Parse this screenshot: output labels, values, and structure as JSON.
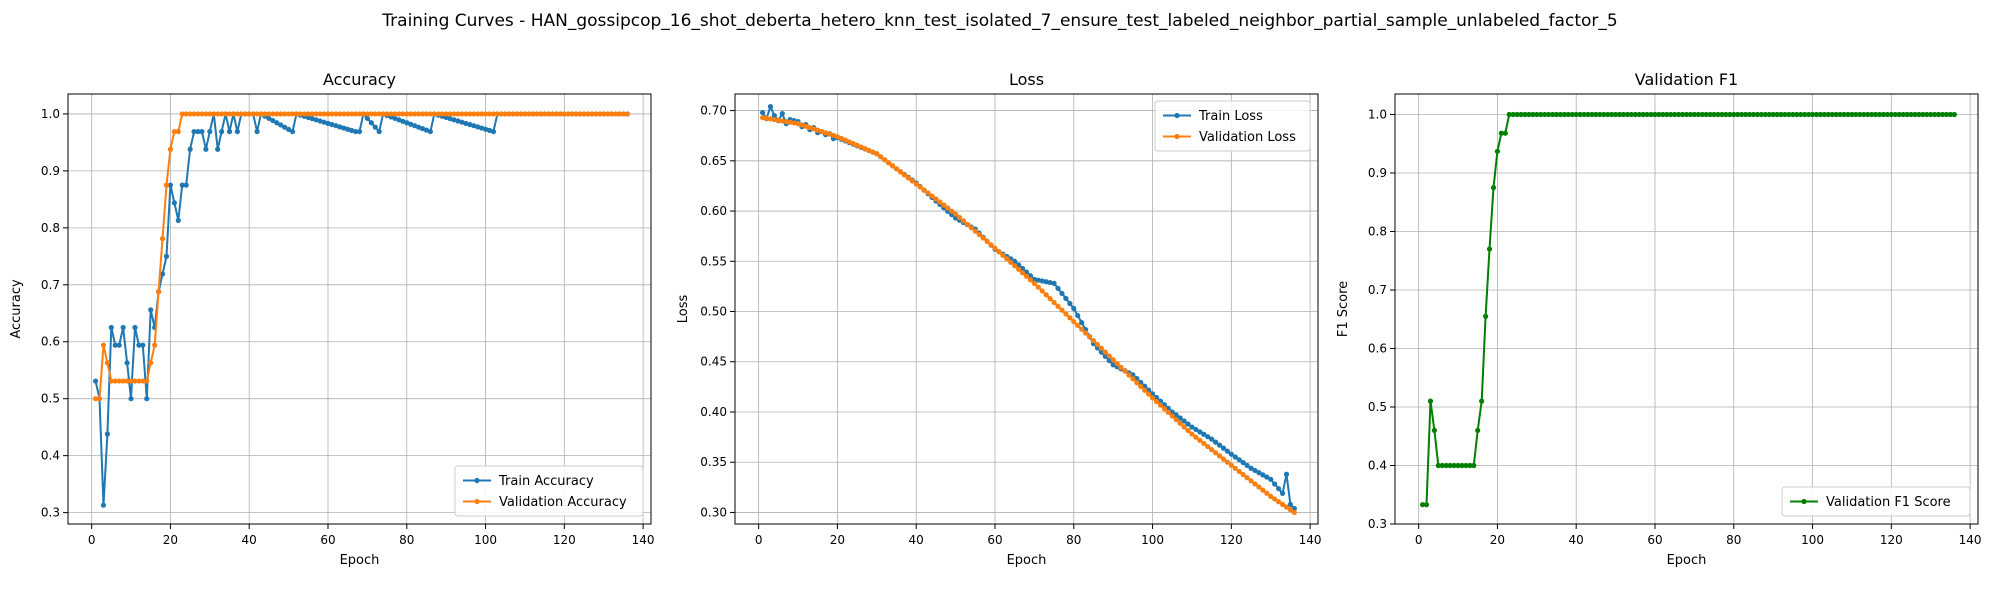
{
  "figure_title": "Training Curves - HAN_gossipcop_16_shot_deberta_hetero_knn_test_isolated_7_ensure_test_labeled_neighbor_partial_sample_unlabeled_factor_5",
  "colors": {
    "train": "#1f77b4",
    "validation": "#ff7f0e",
    "f1": "#008000"
  },
  "chart_data": [
    {
      "type": "line",
      "title": "Accuracy",
      "xlabel": "Epoch",
      "ylabel": "Accuracy",
      "xlim": [
        -6,
        142
      ],
      "ylim": [
        0.28,
        1.035
      ],
      "xticks": [
        0,
        20,
        40,
        60,
        80,
        100,
        120,
        140
      ],
      "yticks": [
        0.3,
        0.4,
        0.5,
        0.6,
        0.7,
        0.8,
        0.9,
        1.0
      ],
      "ytick_labels": [
        "0.3",
        "0.4",
        "0.5",
        "0.6",
        "0.7",
        "0.8",
        "0.9",
        "1.0"
      ],
      "grid": true,
      "legend_position": "lower-right",
      "series": [
        {
          "name": "Train Accuracy",
          "color_key": "train",
          "points": [
            [
              1,
              0.531
            ],
            [
              2,
              0.5
            ],
            [
              3,
              0.313
            ],
            [
              4,
              0.438
            ],
            [
              5,
              0.625
            ],
            [
              6,
              0.594
            ],
            [
              7,
              0.594
            ],
            [
              8,
              0.625
            ],
            [
              9,
              0.563
            ],
            [
              10,
              0.5
            ],
            [
              11,
              0.625
            ],
            [
              12,
              0.594
            ],
            [
              13,
              0.594
            ],
            [
              14,
              0.5
            ],
            [
              15,
              0.656
            ],
            [
              16,
              0.625
            ],
            [
              17,
              0.688
            ],
            [
              18,
              0.719
            ],
            [
              19,
              0.75
            ],
            [
              20,
              0.875
            ],
            [
              21,
              0.844
            ],
            [
              22,
              0.813
            ],
            [
              23,
              0.875
            ],
            [
              24,
              0.875
            ],
            [
              25,
              0.938
            ],
            [
              26,
              0.969
            ],
            [
              27,
              0.969
            ],
            [
              28,
              0.969
            ],
            [
              29,
              0.938
            ],
            [
              30,
              0.969
            ],
            [
              31,
              1.0
            ],
            [
              32,
              0.938
            ],
            [
              33,
              0.969
            ],
            [
              34,
              1.0
            ],
            [
              35,
              0.969
            ],
            [
              36,
              1.0
            ],
            [
              37,
              0.969
            ],
            [
              38,
              1.0
            ],
            [
              39,
              1.0
            ],
            [
              40,
              1.0
            ],
            [
              41,
              1.0
            ],
            [
              42,
              0.969
            ],
            [
              43,
              1.0
            ],
            [
              51,
              0.969
            ],
            [
              52,
              1.0
            ],
            [
              67,
              0.969
            ],
            [
              68,
              0.969
            ],
            [
              69,
              1.0
            ],
            [
              73,
              0.969
            ],
            [
              74,
              1.0
            ],
            [
              86,
              0.969
            ],
            [
              87,
              1.0
            ],
            [
              102,
              0.969
            ],
            [
              103,
              1.0
            ],
            [
              136,
              1.0
            ]
          ]
        },
        {
          "name": "Validation Accuracy",
          "color_key": "validation",
          "points": [
            [
              1,
              0.5
            ],
            [
              2,
              0.5
            ],
            [
              3,
              0.594
            ],
            [
              4,
              0.563
            ],
            [
              5,
              0.531
            ],
            [
              14,
              0.531
            ],
            [
              15,
              0.563
            ],
            [
              16,
              0.594
            ],
            [
              17,
              0.688
            ],
            [
              18,
              0.781
            ],
            [
              19,
              0.875
            ],
            [
              20,
              0.938
            ],
            [
              21,
              0.969
            ],
            [
              22,
              0.969
            ],
            [
              23,
              1.0
            ],
            [
              136,
              1.0
            ]
          ]
        }
      ]
    },
    {
      "type": "line",
      "title": "Loss",
      "xlabel": "Epoch",
      "ylabel": "Loss",
      "xlim": [
        -6,
        142
      ],
      "ylim": [
        0.2885,
        0.7165
      ],
      "xticks": [
        0,
        20,
        40,
        60,
        80,
        100,
        120,
        140
      ],
      "yticks": [
        0.3,
        0.35,
        0.4,
        0.45,
        0.5,
        0.55,
        0.6,
        0.65,
        0.7
      ],
      "ytick_labels": [
        "0.30",
        "0.35",
        "0.40",
        "0.45",
        "0.50",
        "0.55",
        "0.60",
        "0.65",
        "0.70"
      ],
      "grid": true,
      "legend_position": "upper-right",
      "series": [
        {
          "name": "Train Loss",
          "color_key": "train",
          "points": [
            [
              1,
              0.698
            ],
            [
              2,
              0.692
            ],
            [
              3,
              0.704
            ],
            [
              4,
              0.695
            ],
            [
              5,
              0.69
            ],
            [
              6,
              0.697
            ],
            [
              7,
              0.687
            ],
            [
              8,
              0.691
            ],
            [
              9,
              0.69
            ],
            [
              10,
              0.689
            ],
            [
              11,
              0.684
            ],
            [
              12,
              0.686
            ],
            [
              13,
              0.681
            ],
            [
              14,
              0.683
            ],
            [
              15,
              0.678
            ],
            [
              16,
              0.679
            ],
            [
              17,
              0.676
            ],
            [
              18,
              0.677
            ],
            [
              19,
              0.672
            ],
            [
              20,
              0.673
            ],
            [
              25,
              0.665
            ],
            [
              30,
              0.657
            ],
            [
              35,
              0.642
            ],
            [
              40,
              0.628
            ],
            [
              45,
              0.61
            ],
            [
              50,
              0.593
            ],
            [
              55,
              0.582
            ],
            [
              60,
              0.562
            ],
            [
              65,
              0.55
            ],
            [
              70,
              0.532
            ],
            [
              75,
              0.528
            ],
            [
              80,
              0.503
            ],
            [
              85,
              0.468
            ],
            [
              90,
              0.447
            ],
            [
              95,
              0.437
            ],
            [
              100,
              0.418
            ],
            [
              105,
              0.4
            ],
            [
              110,
              0.385
            ],
            [
              115,
              0.373
            ],
            [
              120,
              0.358
            ],
            [
              125,
              0.344
            ],
            [
              130,
              0.333
            ],
            [
              133,
              0.319
            ],
            [
              134,
              0.338
            ],
            [
              135,
              0.308
            ],
            [
              136,
              0.304
            ]
          ]
        },
        {
          "name": "Validation Loss",
          "color_key": "validation",
          "points": [
            [
              1,
              0.693
            ],
            [
              10,
              0.687
            ],
            [
              20,
              0.674
            ],
            [
              30,
              0.657
            ],
            [
              40,
              0.627
            ],
            [
              50,
              0.597
            ],
            [
              60,
              0.563
            ],
            [
              70,
              0.528
            ],
            [
              80,
              0.49
            ],
            [
              90,
              0.452
            ],
            [
              100,
              0.414
            ],
            [
              110,
              0.378
            ],
            [
              120,
              0.347
            ],
            [
              130,
              0.316
            ],
            [
              136,
              0.3
            ]
          ]
        }
      ]
    },
    {
      "type": "line",
      "title": "Validation F1",
      "xlabel": "Epoch",
      "ylabel": "F1 Score",
      "xlim": [
        -6,
        142
      ],
      "ylim": [
        0.3,
        1.035
      ],
      "xticks": [
        0,
        20,
        40,
        60,
        80,
        100,
        120,
        140
      ],
      "yticks": [
        0.3,
        0.4,
        0.5,
        0.6,
        0.7,
        0.8,
        0.9,
        1.0
      ],
      "ytick_labels": [
        "0.3",
        "0.4",
        "0.5",
        "0.6",
        "0.7",
        "0.8",
        "0.9",
        "1.0"
      ],
      "grid": true,
      "legend_position": "lower-right",
      "series": [
        {
          "name": "Validation F1 Score",
          "color_key": "f1",
          "points": [
            [
              1,
              0.333
            ],
            [
              2,
              0.333
            ],
            [
              3,
              0.51
            ],
            [
              4,
              0.46
            ],
            [
              5,
              0.4
            ],
            [
              14,
              0.4
            ],
            [
              15,
              0.46
            ],
            [
              16,
              0.51
            ],
            [
              17,
              0.655
            ],
            [
              18,
              0.77
            ],
            [
              19,
              0.875
            ],
            [
              20,
              0.937
            ],
            [
              21,
              0.968
            ],
            [
              22,
              0.968
            ],
            [
              23,
              1.0
            ],
            [
              136,
              1.0
            ]
          ]
        }
      ]
    }
  ]
}
